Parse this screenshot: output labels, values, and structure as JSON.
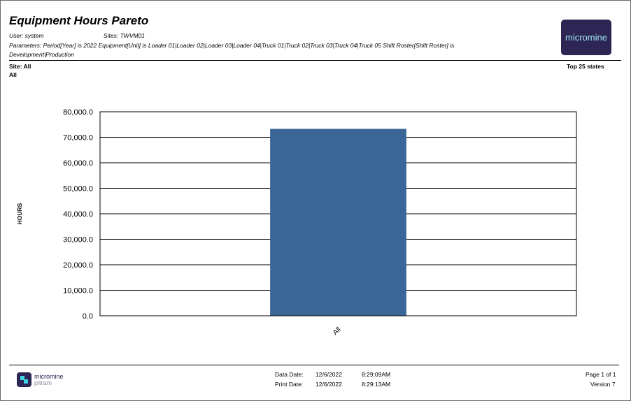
{
  "report": {
    "title": "Equipment Hours Pareto",
    "user": "User: system",
    "sites": "Sites: TWVM01",
    "parameters": "Parameters: Period[Year] is 2022 Equipment[Unit] is Loader 01|Loader 02|Loader 03|Loader 04|Truck 01|Truck 02|Truck 03|Truck 04|Truck 05 Shift Roster[Shift Roster] is Development|Production",
    "site_label": "Site: All",
    "site_value": "All",
    "top_states": "Top 25 states"
  },
  "logo": {
    "text": "micromine"
  },
  "footer": {
    "brand": "micromine",
    "brand_sub": "pitram",
    "data_date_label": "Data Date:",
    "data_date": "12/6/2022",
    "data_time": "8:29:09AM",
    "print_date_label": "Print Date:",
    "print_date": "12/6/2022",
    "print_time": "8:29:13AM",
    "page": "Page 1 of 1",
    "version": "Version 7"
  },
  "chart_data": {
    "type": "bar",
    "categories": [
      "All"
    ],
    "values": [
      73300
    ],
    "ylabel": "HOURS",
    "xlabel": "",
    "ylim": [
      0,
      80000
    ],
    "yticks": [
      "0.0",
      "10,000.0",
      "20,000.0",
      "30,000.0",
      "40,000.0",
      "50,000.0",
      "60,000.0",
      "70,000.0",
      "80,000.0"
    ],
    "grid": true,
    "bar_color": "#3a6698"
  }
}
